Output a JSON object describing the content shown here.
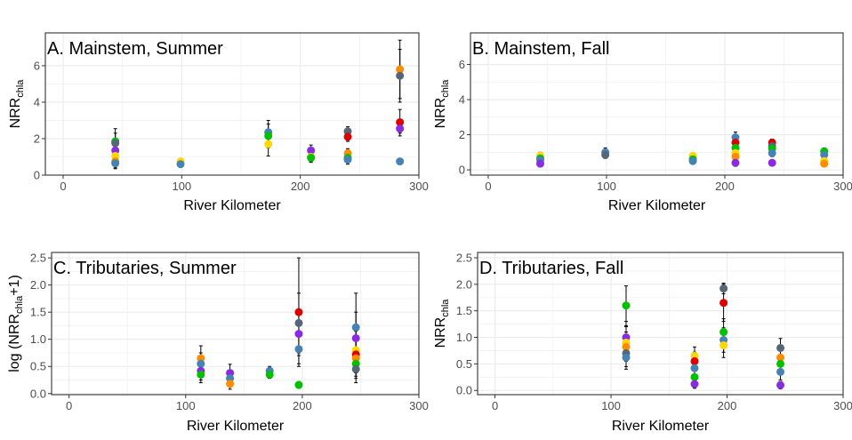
{
  "chart_data": [
    {
      "type": "scatter",
      "title": "A. Mainstem, Summer",
      "xlabel": "River Kilometer",
      "ylabel": {
        "main": "NRR",
        "sub": "chla",
        "suffix": ""
      },
      "xlim": [
        -15,
        300
      ],
      "ylim": [
        0,
        7.8
      ],
      "xticks": [
        0,
        100,
        200,
        300
      ],
      "yticks": [
        0,
        2,
        4,
        6
      ],
      "grid": true,
      "points": [
        {
          "x": 44,
          "y": 1.85,
          "ymin": 1.15,
          "ymax": 2.55,
          "color": "#00c000"
        },
        {
          "x": 44,
          "y": 1.75,
          "ymin": 1.2,
          "ymax": 2.3,
          "color": "#556677"
        },
        {
          "x": 44,
          "y": 1.35,
          "ymin": 0.9,
          "ymax": 1.8,
          "color": "#8a2be2"
        },
        {
          "x": 44,
          "y": 1.05,
          "ymin": 0.6,
          "ymax": 1.5,
          "color": "#ffd700"
        },
        {
          "x": 44,
          "y": 0.75,
          "ymin": 0.4,
          "ymax": 1.1,
          "color": "#ff8c00"
        },
        {
          "x": 44,
          "y": 0.65,
          "ymin": 0.35,
          "ymax": 0.95,
          "color": "#4682b4"
        },
        {
          "x": 99,
          "y": 0.75,
          "ymin": 0.6,
          "ymax": 0.9,
          "color": "#ffd700"
        },
        {
          "x": 99,
          "y": 0.6,
          "ymin": 0.45,
          "ymax": 0.75,
          "color": "#4682b4"
        },
        {
          "x": 173,
          "y": 2.35,
          "ymin": 1.7,
          "ymax": 3.0,
          "color": "#4682b4"
        },
        {
          "x": 173,
          "y": 2.15,
          "ymin": 1.5,
          "ymax": 2.8,
          "color": "#00c000"
        },
        {
          "x": 173,
          "y": 1.7,
          "ymin": 1.05,
          "ymax": 2.35,
          "color": "#ffd700"
        },
        {
          "x": 209,
          "y": 1.35,
          "ymin": 1.05,
          "ymax": 1.65,
          "color": "#8a2be2"
        },
        {
          "x": 209,
          "y": 1.0,
          "ymin": 0.75,
          "ymax": 1.3,
          "color": "#ffd700"
        },
        {
          "x": 209,
          "y": 0.95,
          "ymin": 0.7,
          "ymax": 1.2,
          "color": "#00c000"
        },
        {
          "x": 240,
          "y": 2.4,
          "ymin": 2.15,
          "ymax": 2.65,
          "color": "#556677"
        },
        {
          "x": 240,
          "y": 2.1,
          "ymin": 1.85,
          "ymax": 2.35,
          "color": "#dd0000"
        },
        {
          "x": 240,
          "y": 1.2,
          "ymin": 0.95,
          "ymax": 1.45,
          "color": "#ff8c00"
        },
        {
          "x": 240,
          "y": 0.95,
          "ymin": 0.7,
          "ymax": 1.2,
          "color": "#00c000"
        },
        {
          "x": 240,
          "y": 0.85,
          "ymin": 0.6,
          "ymax": 1.1,
          "color": "#4682b4"
        },
        {
          "x": 284,
          "y": 5.8,
          "ymin": 4.2,
          "ymax": 7.4,
          "color": "#ff8c00"
        },
        {
          "x": 284,
          "y": 5.45,
          "ymin": 4.0,
          "ymax": 6.9,
          "color": "#556677"
        },
        {
          "x": 284,
          "y": 2.9,
          "ymin": 2.3,
          "ymax": 3.6,
          "color": "#dd0000"
        },
        {
          "x": 284,
          "y": 2.55,
          "ymin": 2.15,
          "ymax": 2.95,
          "color": "#8a2be2"
        },
        {
          "x": 284,
          "y": 0.75,
          "ymin": 0.6,
          "ymax": 0.9,
          "color": "#4682b4"
        }
      ]
    },
    {
      "type": "scatter",
      "title": "B. Mainstem, Fall",
      "xlabel": "River Kilometer",
      "ylabel": {
        "main": "NRR",
        "sub": "chla",
        "suffix": ""
      },
      "xlim": [
        -15,
        300
      ],
      "ylim": [
        -0.3,
        7.8
      ],
      "xticks": [
        0,
        100,
        200,
        300
      ],
      "yticks": [
        0,
        2,
        4,
        6
      ],
      "grid": true,
      "points": [
        {
          "x": 44,
          "y": 0.8,
          "ymin": 0.6,
          "ymax": 1.0,
          "color": "#ffd700"
        },
        {
          "x": 44,
          "y": 0.65,
          "ymin": 0.45,
          "ymax": 0.85,
          "color": "#00c000"
        },
        {
          "x": 44,
          "y": 0.55,
          "ymin": 0.35,
          "ymax": 0.75,
          "color": "#4682b4"
        },
        {
          "x": 44,
          "y": 0.35,
          "ymin": 0.2,
          "ymax": 0.5,
          "color": "#8a2be2"
        },
        {
          "x": 99,
          "y": 1.0,
          "ymin": 0.75,
          "ymax": 1.25,
          "color": "#4682b4"
        },
        {
          "x": 99,
          "y": 0.85,
          "ymin": 0.65,
          "ymax": 1.05,
          "color": "#556677"
        },
        {
          "x": 173,
          "y": 0.8,
          "ymin": 0.65,
          "ymax": 0.95,
          "color": "#ffd700"
        },
        {
          "x": 173,
          "y": 0.6,
          "ymin": 0.45,
          "ymax": 0.75,
          "color": "#00c000"
        },
        {
          "x": 173,
          "y": 0.5,
          "ymin": 0.35,
          "ymax": 0.65,
          "color": "#4682b4"
        },
        {
          "x": 209,
          "y": 1.85,
          "ymin": 1.55,
          "ymax": 2.15,
          "color": "#4682b4"
        },
        {
          "x": 209,
          "y": 1.55,
          "ymin": 1.25,
          "ymax": 1.85,
          "color": "#dd0000"
        },
        {
          "x": 209,
          "y": 1.25,
          "ymin": 0.95,
          "ymax": 1.55,
          "color": "#00c000"
        },
        {
          "x": 209,
          "y": 0.95,
          "ymin": 0.65,
          "ymax": 1.25,
          "color": "#ffd700"
        },
        {
          "x": 209,
          "y": 0.75,
          "ymin": 0.5,
          "ymax": 1.0,
          "color": "#ff8c00"
        },
        {
          "x": 209,
          "y": 0.4,
          "ymin": 0.2,
          "ymax": 0.6,
          "color": "#8a2be2"
        },
        {
          "x": 240,
          "y": 1.55,
          "ymin": 1.35,
          "ymax": 1.75,
          "color": "#dd0000"
        },
        {
          "x": 240,
          "y": 1.35,
          "ymin": 1.15,
          "ymax": 1.55,
          "color": "#556677"
        },
        {
          "x": 240,
          "y": 1.2,
          "ymin": 1.0,
          "ymax": 1.4,
          "color": "#00c000"
        },
        {
          "x": 240,
          "y": 0.95,
          "ymin": 0.75,
          "ymax": 1.15,
          "color": "#4682b4"
        },
        {
          "x": 240,
          "y": 0.4,
          "ymin": 0.25,
          "ymax": 0.55,
          "color": "#8a2be2"
        },
        {
          "x": 284,
          "y": 1.05,
          "ymin": 0.85,
          "ymax": 1.25,
          "color": "#00c000"
        },
        {
          "x": 284,
          "y": 0.85,
          "ymin": 0.65,
          "ymax": 1.05,
          "color": "#4682b4"
        },
        {
          "x": 284,
          "y": 0.5,
          "ymin": 0.3,
          "ymax": 0.7,
          "color": "#ffd700"
        },
        {
          "x": 284,
          "y": 0.35,
          "ymin": 0.2,
          "ymax": 0.5,
          "color": "#ff8c00"
        }
      ]
    },
    {
      "type": "scatter",
      "title": "C. Tributaries, Summer",
      "xlabel": "River Kilometer",
      "ylabel": {
        "main": "log (NRR",
        "sub": "chla",
        "suffix": "+1)"
      },
      "xlim": [
        -15,
        300
      ],
      "ylim": [
        -0.02,
        2.6
      ],
      "xticks": [
        0,
        100,
        200,
        300
      ],
      "yticks": [
        0,
        0.5,
        1,
        1.5,
        2,
        2.5
      ],
      "ytick_labels": [
        "0.0",
        "0.5",
        "1.0",
        "1.5",
        "2.0",
        "2.5"
      ],
      "grid": true,
      "points": [
        {
          "x": 113,
          "y": 0.65,
          "ymin": 0.42,
          "ymax": 0.88,
          "color": "#ff8c00"
        },
        {
          "x": 113,
          "y": 0.55,
          "ymin": 0.35,
          "ymax": 0.75,
          "color": "#4682b4"
        },
        {
          "x": 113,
          "y": 0.42,
          "ymin": 0.25,
          "ymax": 0.6,
          "color": "#8a2be2"
        },
        {
          "x": 113,
          "y": 0.35,
          "ymin": 0.2,
          "ymax": 0.5,
          "color": "#00c000"
        },
        {
          "x": 138,
          "y": 0.38,
          "ymin": 0.22,
          "ymax": 0.54,
          "color": "#8a2be2"
        },
        {
          "x": 138,
          "y": 0.28,
          "ymin": 0.14,
          "ymax": 0.42,
          "color": "#4682b4"
        },
        {
          "x": 138,
          "y": 0.18,
          "ymin": 0.08,
          "ymax": 0.3,
          "color": "#ff8c00"
        },
        {
          "x": 172,
          "y": 0.42,
          "ymin": 0.34,
          "ymax": 0.5,
          "color": "#4682b4"
        },
        {
          "x": 172,
          "y": 0.35,
          "ymin": 0.28,
          "ymax": 0.42,
          "color": "#00c000"
        },
        {
          "x": 197,
          "y": 1.5,
          "ymin": 0.5,
          "ymax": 2.5,
          "color": "#dd0000"
        },
        {
          "x": 197,
          "y": 1.3,
          "ymin": 0.75,
          "ymax": 1.85,
          "color": "#556677"
        },
        {
          "x": 197,
          "y": 1.1,
          "ymin": 0.7,
          "ymax": 1.5,
          "color": "#8a2be2"
        },
        {
          "x": 197,
          "y": 0.82,
          "ymin": 0.55,
          "ymax": 1.1,
          "color": "#4682b4"
        },
        {
          "x": 197,
          "y": 0.16,
          "ymin": 0.1,
          "ymax": 0.22,
          "color": "#00c000"
        },
        {
          "x": 246,
          "y": 1.22,
          "ymin": 0.6,
          "ymax": 1.85,
          "color": "#4682b4"
        },
        {
          "x": 246,
          "y": 1.02,
          "ymin": 0.55,
          "ymax": 1.5,
          "color": "#8a2be2"
        },
        {
          "x": 246,
          "y": 0.8,
          "ymin": 0.45,
          "ymax": 1.15,
          "color": "#ffd700"
        },
        {
          "x": 246,
          "y": 0.72,
          "ymin": 0.38,
          "ymax": 1.05,
          "color": "#dd0000"
        },
        {
          "x": 246,
          "y": 0.65,
          "ymin": 0.32,
          "ymax": 0.98,
          "color": "#ff8c00"
        },
        {
          "x": 246,
          "y": 0.55,
          "ymin": 0.28,
          "ymax": 0.85,
          "color": "#00c000"
        },
        {
          "x": 246,
          "y": 0.45,
          "ymin": 0.2,
          "ymax": 0.7,
          "color": "#556677"
        }
      ]
    },
    {
      "type": "scatter",
      "title": "D. Tributaries, Fall",
      "xlabel": "River Kilometer",
      "ylabel": {
        "main": "NRR",
        "sub": "chla",
        "suffix": ""
      },
      "xlim": [
        -15,
        300
      ],
      "ylim": [
        -0.08,
        2.6
      ],
      "xticks": [
        0,
        100,
        200,
        300
      ],
      "yticks": [
        0,
        0.5,
        1,
        1.5,
        2,
        2.5
      ],
      "ytick_labels": [
        "0.0",
        "0.5",
        "1.0",
        "1.5",
        "2.0",
        "2.5"
      ],
      "grid": true,
      "points": [
        {
          "x": 113,
          "y": 1.6,
          "ymin": 1.22,
          "ymax": 1.97,
          "color": "#00c000"
        },
        {
          "x": 113,
          "y": 1.0,
          "ymin": 0.7,
          "ymax": 1.3,
          "color": "#8a2be2"
        },
        {
          "x": 113,
          "y": 0.9,
          "ymin": 0.6,
          "ymax": 1.2,
          "color": "#ffd700"
        },
        {
          "x": 113,
          "y": 0.82,
          "ymin": 0.55,
          "ymax": 1.1,
          "color": "#ff8c00"
        },
        {
          "x": 113,
          "y": 0.7,
          "ymin": 0.45,
          "ymax": 0.95,
          "color": "#556677"
        },
        {
          "x": 113,
          "y": 0.62,
          "ymin": 0.4,
          "ymax": 0.85,
          "color": "#4682b4"
        },
        {
          "x": 172,
          "y": 0.65,
          "ymin": 0.48,
          "ymax": 0.82,
          "color": "#ffd700"
        },
        {
          "x": 172,
          "y": 0.55,
          "ymin": 0.38,
          "ymax": 0.72,
          "color": "#dd0000"
        },
        {
          "x": 172,
          "y": 0.42,
          "ymin": 0.28,
          "ymax": 0.56,
          "color": "#4682b4"
        },
        {
          "x": 172,
          "y": 0.25,
          "ymin": 0.12,
          "ymax": 0.38,
          "color": "#00c000"
        },
        {
          "x": 172,
          "y": 0.12,
          "ymin": 0.04,
          "ymax": 0.2,
          "color": "#8a2be2"
        },
        {
          "x": 197,
          "y": 1.92,
          "ymin": 1.82,
          "ymax": 2.02,
          "color": "#556677"
        },
        {
          "x": 197,
          "y": 1.65,
          "ymin": 1.3,
          "ymax": 2.0,
          "color": "#dd0000"
        },
        {
          "x": 197,
          "y": 1.1,
          "ymin": 0.85,
          "ymax": 1.35,
          "color": "#00c000"
        },
        {
          "x": 197,
          "y": 0.95,
          "ymin": 0.72,
          "ymax": 1.18,
          "color": "#4682b4"
        },
        {
          "x": 197,
          "y": 0.85,
          "ymin": 0.62,
          "ymax": 1.08,
          "color": "#ffd700"
        },
        {
          "x": 246,
          "y": 0.8,
          "ymin": 0.62,
          "ymax": 0.98,
          "color": "#556677"
        },
        {
          "x": 246,
          "y": 0.62,
          "ymin": 0.45,
          "ymax": 0.8,
          "color": "#ff8c00"
        },
        {
          "x": 246,
          "y": 0.5,
          "ymin": 0.34,
          "ymax": 0.66,
          "color": "#00c000"
        },
        {
          "x": 246,
          "y": 0.35,
          "ymin": 0.2,
          "ymax": 0.5,
          "color": "#4682b4"
        },
        {
          "x": 246,
          "y": 0.1,
          "ymin": 0.03,
          "ymax": 0.17,
          "color": "#8a2be2"
        }
      ]
    }
  ]
}
